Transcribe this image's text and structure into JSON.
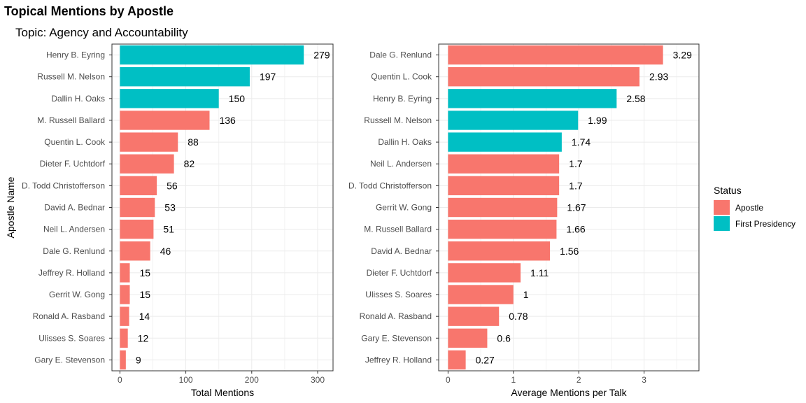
{
  "title": "Topical Mentions by Apostle",
  "subtitle": "Topic: Agency and Accountability",
  "legend": {
    "title": "Status",
    "items": [
      {
        "label": "Apostle",
        "color": "#F8766D"
      },
      {
        "label": "First Presidency",
        "color": "#00BFC4"
      }
    ]
  },
  "chart_data": [
    {
      "type": "bar",
      "orientation": "horizontal",
      "xlabel": "Total Mentions",
      "ylabel": "Apostle Name",
      "xlim": [
        0,
        320
      ],
      "xticks": [
        0,
        100,
        200,
        300
      ],
      "grid": true,
      "categories": [
        "Henry B. Eyring",
        "Russell M. Nelson",
        "Dallin H. Oaks",
        "M. Russell Ballard",
        "Quentin L. Cook",
        "Dieter F. Uchtdorf",
        "D. Todd Christofferson",
        "David A. Bednar",
        "Neil L. Andersen",
        "Dale G. Renlund",
        "Jeffrey R. Holland",
        "Gerrit W. Gong",
        "Ronald A. Rasband",
        "Ulisses S. Soares",
        "Gary E. Stevenson"
      ],
      "values": [
        279,
        197,
        150,
        136,
        88,
        82,
        56,
        53,
        51,
        46,
        15,
        15,
        14,
        12,
        9
      ],
      "value_labels": [
        "279",
        "197",
        "150",
        "136",
        "88",
        "82",
        "56",
        "53",
        "51",
        "46",
        "15",
        "15",
        "14",
        "12",
        "9"
      ],
      "status": [
        "First Presidency",
        "First Presidency",
        "First Presidency",
        "Apostle",
        "Apostle",
        "Apostle",
        "Apostle",
        "Apostle",
        "Apostle",
        "Apostle",
        "Apostle",
        "Apostle",
        "Apostle",
        "Apostle",
        "Apostle"
      ]
    },
    {
      "type": "bar",
      "orientation": "horizontal",
      "xlabel": "Average Mentions per Talk",
      "ylabel": "",
      "xlim": [
        0,
        3.8
      ],
      "xticks": [
        0,
        1,
        2,
        3
      ],
      "grid": true,
      "categories": [
        "Dale G. Renlund",
        "Quentin L. Cook",
        "Henry B. Eyring",
        "Russell M. Nelson",
        "Dallin H. Oaks",
        "Neil L. Andersen",
        "D. Todd Christofferson",
        "Gerrit W. Gong",
        "M. Russell Ballard",
        "David A. Bednar",
        "Dieter F. Uchtdorf",
        "Ulisses S. Soares",
        "Ronald A. Rasband",
        "Gary E. Stevenson",
        "Jeffrey R. Holland"
      ],
      "values": [
        3.29,
        2.93,
        2.58,
        1.99,
        1.74,
        1.7,
        1.7,
        1.67,
        1.66,
        1.56,
        1.11,
        1,
        0.78,
        0.6,
        0.27
      ],
      "value_labels": [
        "3.29",
        "2.93",
        "2.58",
        "1.99",
        "1.74",
        "1.7",
        "1.7",
        "1.67",
        "1.66",
        "1.56",
        "1.11",
        "1",
        "0.78",
        "0.6",
        "0.27"
      ],
      "status": [
        "Apostle",
        "Apostle",
        "First Presidency",
        "First Presidency",
        "First Presidency",
        "Apostle",
        "Apostle",
        "Apostle",
        "Apostle",
        "Apostle",
        "Apostle",
        "Apostle",
        "Apostle",
        "Apostle",
        "Apostle"
      ]
    }
  ]
}
